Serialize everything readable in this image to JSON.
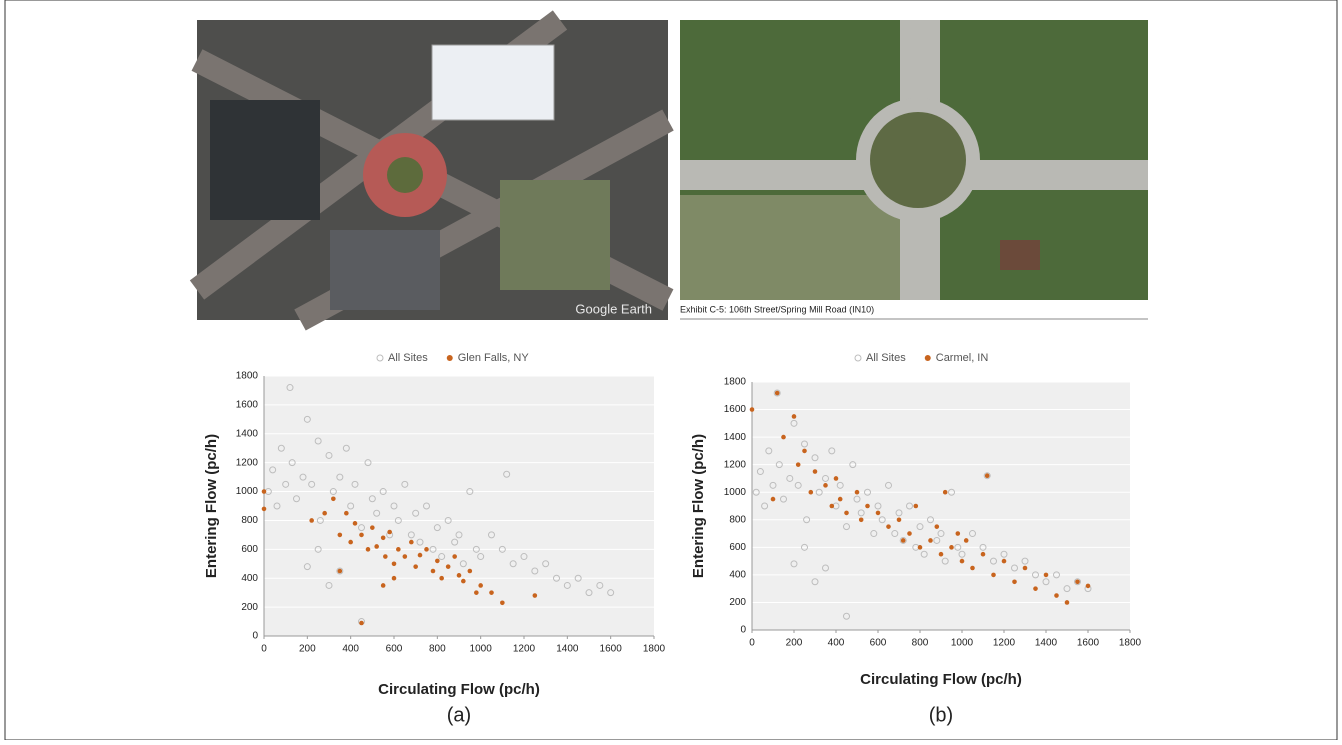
{
  "images": {
    "left_watermark": "Google Earth",
    "right_caption": "Exhibit C-5: 106th Street/Spring Mill Road (IN10)"
  },
  "chart_data": [
    {
      "type": "scatter",
      "panel_label": "(a)",
      "xlabel": "Circulating Flow (pc/h)",
      "ylabel": "Entering Flow (pc/h)",
      "xlim": [
        0,
        1800
      ],
      "ylim": [
        0,
        1800
      ],
      "xticks": [
        0,
        200,
        400,
        600,
        800,
        1000,
        1200,
        1400,
        1600,
        1800
      ],
      "yticks": [
        0,
        200,
        400,
        600,
        800,
        1000,
        1200,
        1400,
        1600,
        1800
      ],
      "legend": "top",
      "series": [
        {
          "name": "All Sites",
          "color": "#bdbdbd",
          "marker": "hollow",
          "x": [
            20,
            40,
            60,
            80,
            100,
            120,
            130,
            150,
            180,
            200,
            220,
            250,
            260,
            300,
            320,
            350,
            380,
            400,
            420,
            450,
            480,
            500,
            520,
            550,
            580,
            600,
            620,
            650,
            680,
            700,
            720,
            750,
            780,
            800,
            820,
            850,
            880,
            900,
            920,
            950,
            980,
            1000,
            1050,
            1100,
            1120,
            1150,
            1200,
            1250,
            1300,
            1350,
            1400,
            1450,
            1500,
            1550,
            1600,
            200,
            300,
            450,
            250,
            350
          ],
          "values": [
            1000,
            1150,
            900,
            1300,
            1050,
            1720,
            1200,
            950,
            1100,
            1500,
            1050,
            1350,
            800,
            1250,
            1000,
            1100,
            1300,
            900,
            1050,
            750,
            1200,
            950,
            850,
            1000,
            700,
            900,
            800,
            1050,
            700,
            850,
            650,
            900,
            600,
            750,
            550,
            800,
            650,
            700,
            500,
            1000,
            600,
            550,
            700,
            600,
            1120,
            500,
            550,
            450,
            500,
            400,
            350,
            400,
            300,
            350,
            300,
            480,
            350,
            100,
            600,
            450
          ]
        },
        {
          "name": "Glen Falls, NY",
          "color": "#c8641e",
          "marker": "filled",
          "x": [
            0,
            0,
            220,
            280,
            320,
            350,
            380,
            400,
            420,
            450,
            480,
            500,
            520,
            550,
            560,
            580,
            600,
            620,
            650,
            680,
            700,
            720,
            750,
            780,
            800,
            820,
            850,
            880,
            900,
            920,
            950,
            980,
            1000,
            1050,
            1100,
            1250,
            450,
            550,
            350,
            600
          ],
          "values": [
            1000,
            880,
            800,
            850,
            950,
            700,
            850,
            650,
            780,
            700,
            600,
            750,
            620,
            680,
            550,
            720,
            500,
            600,
            550,
            650,
            480,
            560,
            600,
            450,
            520,
            400,
            480,
            550,
            420,
            380,
            450,
            300,
            350,
            300,
            230,
            280,
            90,
            350,
            450,
            400
          ]
        }
      ]
    },
    {
      "type": "scatter",
      "panel_label": "(b)",
      "xlabel": "Circulating Flow (pc/h)",
      "ylabel": "Entering Flow (pc/h)",
      "xlim": [
        0,
        1800
      ],
      "ylim": [
        0,
        1800
      ],
      "xticks": [
        0,
        200,
        400,
        600,
        800,
        1000,
        1200,
        1400,
        1600,
        1800
      ],
      "yticks": [
        0,
        200,
        400,
        600,
        800,
        1000,
        1200,
        1400,
        1600,
        1800
      ],
      "legend": "top",
      "series": [
        {
          "name": "All Sites",
          "color": "#bdbdbd",
          "marker": "hollow",
          "x": [
            20,
            40,
            60,
            80,
            100,
            120,
            130,
            150,
            180,
            200,
            220,
            250,
            260,
            300,
            320,
            350,
            380,
            400,
            420,
            450,
            480,
            500,
            520,
            550,
            580,
            600,
            620,
            650,
            680,
            700,
            720,
            750,
            780,
            800,
            820,
            850,
            880,
            900,
            920,
            950,
            980,
            1000,
            1050,
            1100,
            1120,
            1150,
            1200,
            1250,
            1300,
            1350,
            1400,
            1450,
            1500,
            1550,
            1600,
            200,
            300,
            450,
            250,
            350
          ],
          "values": [
            1000,
            1150,
            900,
            1300,
            1050,
            1720,
            1200,
            950,
            1100,
            1500,
            1050,
            1350,
            800,
            1250,
            1000,
            1100,
            1300,
            900,
            1050,
            750,
            1200,
            950,
            850,
            1000,
            700,
            900,
            800,
            1050,
            700,
            850,
            650,
            900,
            600,
            750,
            550,
            800,
            650,
            700,
            500,
            1000,
            600,
            550,
            700,
            600,
            1120,
            500,
            550,
            450,
            500,
            400,
            350,
            400,
            300,
            350,
            300,
            480,
            350,
            100,
            600,
            450
          ]
        },
        {
          "name": "Carmel, IN",
          "color": "#c8641e",
          "marker": "filled",
          "x": [
            0,
            120,
            150,
            200,
            220,
            250,
            280,
            300,
            350,
            380,
            400,
            420,
            450,
            500,
            520,
            550,
            600,
            650,
            700,
            720,
            750,
            780,
            800,
            850,
            880,
            900,
            920,
            950,
            980,
            1000,
            1020,
            1050,
            1100,
            1120,
            1150,
            1200,
            1250,
            1300,
            1350,
            1400,
            1450,
            1500,
            1550,
            1600,
            100
          ],
          "values": [
            1600,
            1720,
            1400,
            1550,
            1200,
            1300,
            1000,
            1150,
            1050,
            900,
            1100,
            950,
            850,
            1000,
            800,
            900,
            850,
            750,
            800,
            650,
            700,
            900,
            600,
            650,
            750,
            550,
            1000,
            600,
            700,
            500,
            650,
            450,
            550,
            1120,
            400,
            500,
            350,
            450,
            300,
            400,
            250,
            200,
            350,
            320,
            950
          ]
        }
      ]
    }
  ]
}
